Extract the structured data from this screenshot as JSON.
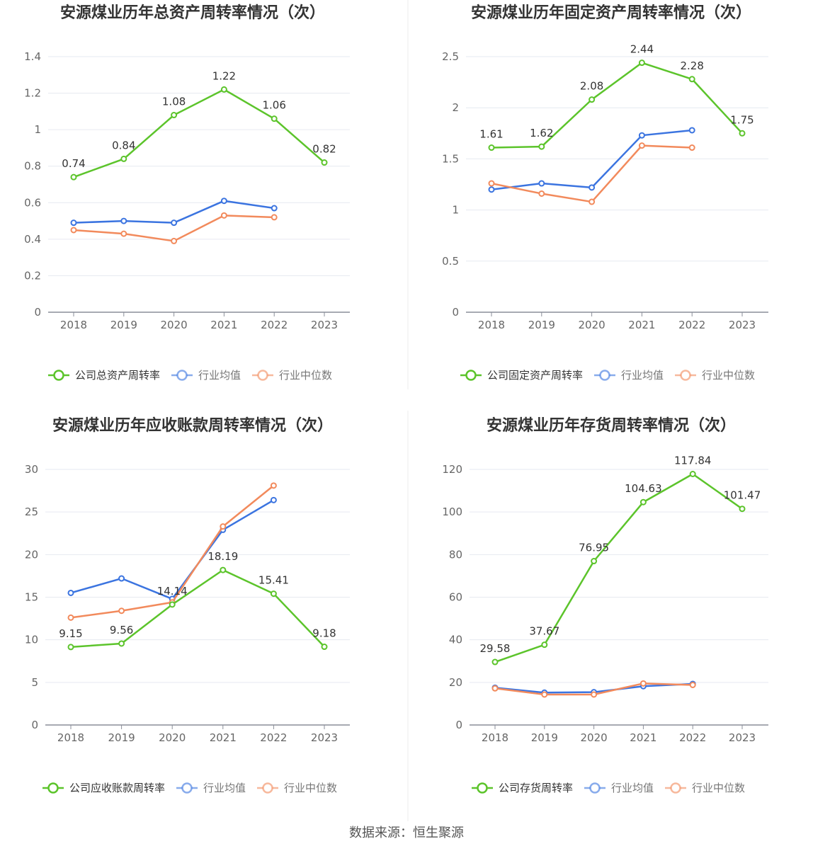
{
  "footer": {
    "source": "数据来源：恒生聚源"
  },
  "chart_data": [
    {
      "type": "line",
      "title": "安源煤业历年总资产周转率情况（次）",
      "categories": [
        "2018",
        "2019",
        "2020",
        "2021",
        "2022",
        "2023"
      ],
      "ylim": [
        0,
        1.4
      ],
      "yticks": [
        "0",
        "0.2",
        "0.4",
        "0.6",
        "0.8",
        "1",
        "1.2",
        "1.4"
      ],
      "grid": true,
      "legend_position": "bottom",
      "series": [
        {
          "name": "公司总资产周转率",
          "color": "#5cc42b",
          "labels": true,
          "values": [
            0.74,
            0.84,
            1.08,
            1.22,
            1.06,
            0.82
          ],
          "label_text": [
            "0.74",
            "0.84",
            "1.08",
            "1.22",
            "1.06",
            "0.82"
          ]
        },
        {
          "name": "行业均值",
          "color": "#3b74e0",
          "labels": false,
          "values": [
            0.49,
            0.5,
            0.49,
            0.61,
            0.57,
            null
          ]
        },
        {
          "name": "行业中位数",
          "color": "#f28a5c",
          "labels": false,
          "values": [
            0.45,
            0.43,
            0.39,
            0.53,
            0.52,
            null
          ]
        }
      ]
    },
    {
      "type": "line",
      "title": "安源煤业历年固定资产周转率情况（次）",
      "categories": [
        "2018",
        "2019",
        "2020",
        "2021",
        "2022",
        "2023"
      ],
      "ylim": [
        0,
        2.5
      ],
      "yticks": [
        "0",
        "0.5",
        "1",
        "1.5",
        "2",
        "2.5"
      ],
      "grid": true,
      "legend_position": "bottom",
      "series": [
        {
          "name": "公司固定资产周转率",
          "color": "#5cc42b",
          "labels": true,
          "values": [
            1.61,
            1.62,
            2.08,
            2.44,
            2.28,
            1.75
          ],
          "label_text": [
            "1.61",
            "1.62",
            "2.08",
            "2.44",
            "2.28",
            "1.75"
          ]
        },
        {
          "name": "行业均值",
          "color": "#3b74e0",
          "labels": false,
          "values": [
            1.2,
            1.26,
            1.22,
            1.73,
            1.78,
            null
          ]
        },
        {
          "name": "行业中位数",
          "color": "#f28a5c",
          "labels": false,
          "values": [
            1.26,
            1.16,
            1.08,
            1.63,
            1.61,
            null
          ]
        }
      ]
    },
    {
      "type": "line",
      "title": "安源煤业历年应收账款周转率情况（次）",
      "categories": [
        "2018",
        "2019",
        "2020",
        "2021",
        "2022",
        "2023"
      ],
      "ylim": [
        0,
        30
      ],
      "yticks": [
        "0",
        "5",
        "10",
        "15",
        "20",
        "25",
        "30"
      ],
      "grid": true,
      "legend_position": "bottom",
      "series": [
        {
          "name": "公司应收账款周转率",
          "color": "#5cc42b",
          "labels": true,
          "values": [
            9.15,
            9.56,
            14.14,
            18.19,
            15.41,
            9.18
          ],
          "label_text": [
            "9.15",
            "9.56",
            "14.14",
            "18.19",
            "15.41",
            "9.18"
          ]
        },
        {
          "name": "行业均值",
          "color": "#3b74e0",
          "labels": false,
          "values": [
            15.5,
            17.2,
            14.8,
            22.9,
            26.4,
            null
          ]
        },
        {
          "name": "行业中位数",
          "color": "#f28a5c",
          "labels": false,
          "values": [
            12.6,
            13.4,
            14.4,
            23.3,
            28.1,
            null
          ]
        }
      ]
    },
    {
      "type": "line",
      "title": "安源煤业历年存货周转率情况（次）",
      "categories": [
        "2018",
        "2019",
        "2020",
        "2021",
        "2022",
        "2023"
      ],
      "ylim": [
        0,
        120
      ],
      "yticks": [
        "0",
        "20",
        "40",
        "60",
        "80",
        "100",
        "120"
      ],
      "grid": true,
      "legend_position": "bottom",
      "series": [
        {
          "name": "公司存货周转率",
          "color": "#5cc42b",
          "labels": true,
          "values": [
            29.58,
            37.67,
            76.95,
            104.63,
            117.84,
            101.47
          ],
          "label_text": [
            "29.58",
            "37.67",
            "76.95",
            "104.63",
            "117.84",
            "101.47"
          ]
        },
        {
          "name": "行业均值",
          "color": "#3b74e0",
          "labels": false,
          "values": [
            17.5,
            15.2,
            15.4,
            18.2,
            19.3,
            null
          ]
        },
        {
          "name": "行业中位数",
          "color": "#f28a5c",
          "labels": false,
          "values": [
            17.2,
            14.3,
            14.3,
            19.5,
            18.8,
            null
          ]
        }
      ]
    }
  ]
}
